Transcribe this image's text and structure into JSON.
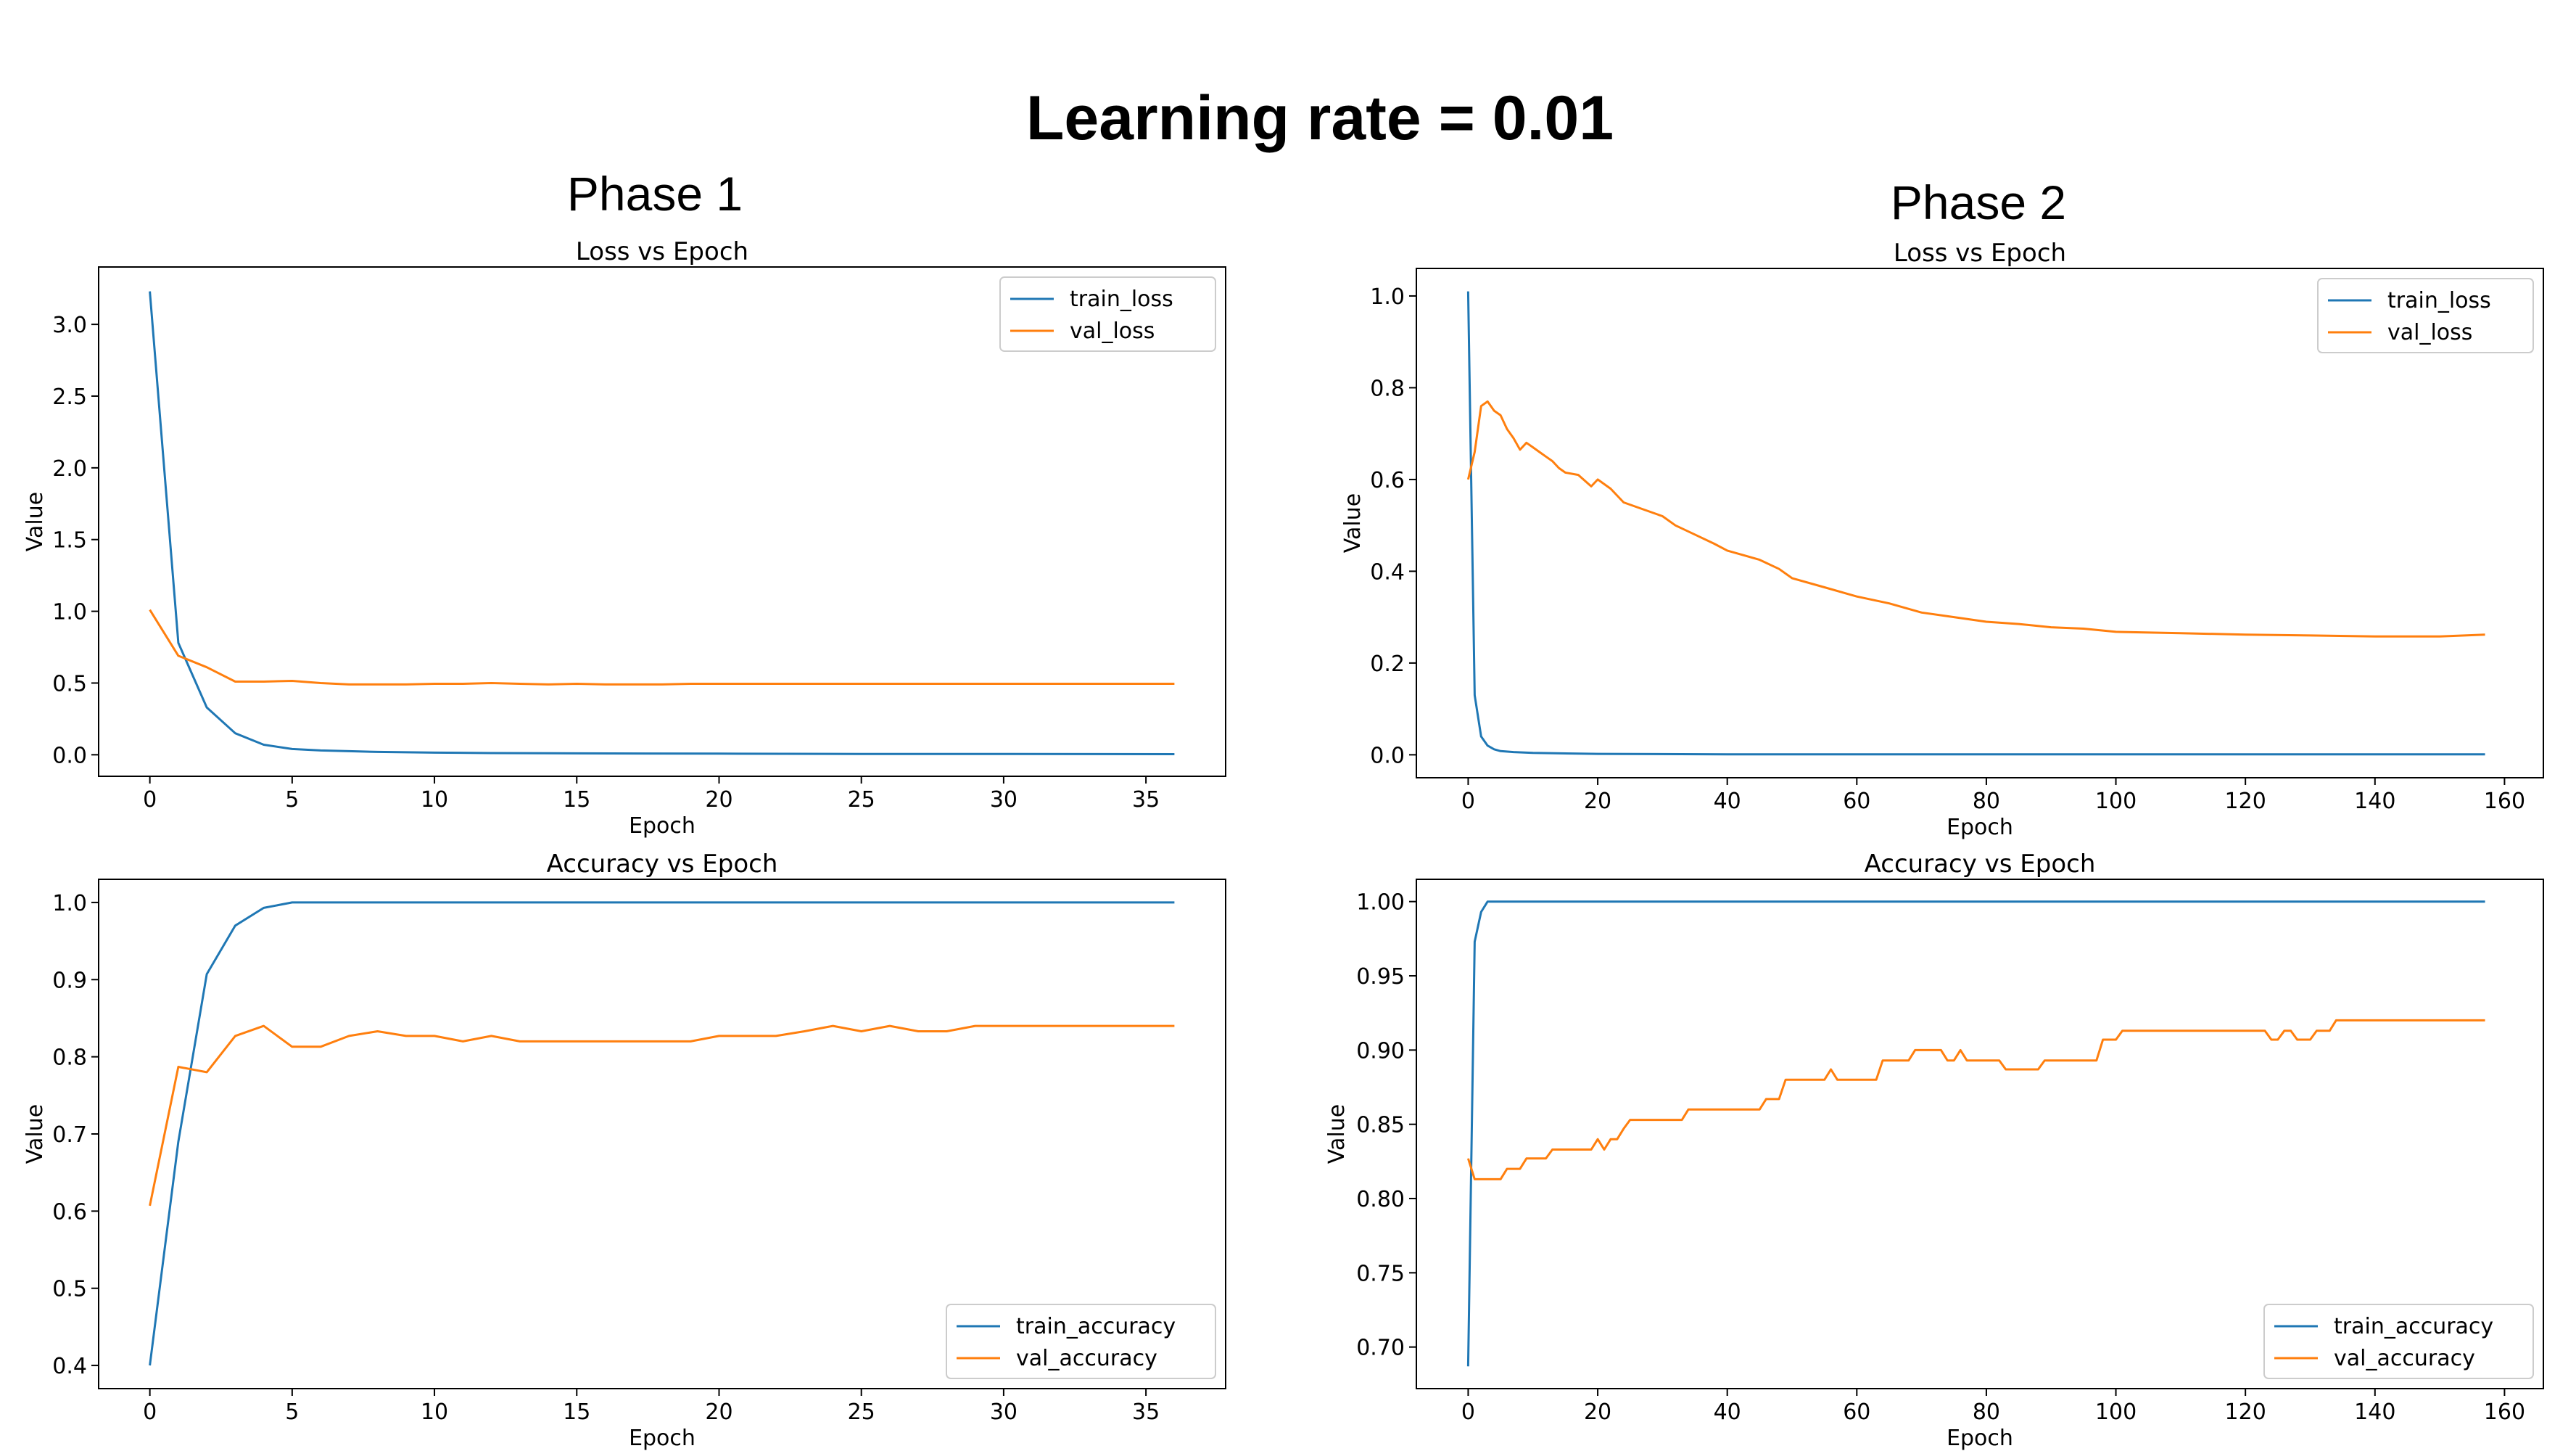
{
  "title": "Learning rate = 0.01",
  "phases": [
    {
      "label": "Phase 1"
    },
    {
      "label": "Phase 2"
    }
  ],
  "colors": {
    "train": "#1f77b4",
    "val": "#ff7f0e"
  },
  "chart_data": [
    {
      "type": "line",
      "panel": "Phase 1",
      "title": "Loss vs Epoch",
      "xlabel": "Epoch",
      "ylabel": "Value",
      "xlim": [
        -1.8,
        37.8
      ],
      "ylim": [
        -0.15,
        3.4
      ],
      "xticks": [
        0,
        5,
        10,
        15,
        20,
        25,
        30,
        35
      ],
      "yticks": [
        0.0,
        0.5,
        1.0,
        1.5,
        2.0,
        2.5,
        3.0
      ],
      "ytick_decimals": 1,
      "legend_loc": "upper right",
      "series": [
        {
          "name": "train_loss",
          "color": "#1f77b4",
          "points": [
            [
              0,
              3.23
            ],
            [
              1,
              0.78
            ],
            [
              2,
              0.33
            ],
            [
              3,
              0.15
            ],
            [
              4,
              0.07
            ],
            [
              5,
              0.04
            ],
            [
              6,
              0.03
            ],
            [
              7,
              0.025
            ],
            [
              8,
              0.02
            ],
            [
              10,
              0.015
            ],
            [
              12,
              0.012
            ],
            [
              15,
              0.01
            ],
            [
              20,
              0.008
            ],
            [
              25,
              0.006
            ],
            [
              30,
              0.005
            ],
            [
              36,
              0.004
            ]
          ]
        },
        {
          "name": "val_loss",
          "color": "#ff7f0e",
          "points": [
            [
              0,
              1.01
            ],
            [
              1,
              0.69
            ],
            [
              2,
              0.61
            ],
            [
              3,
              0.51
            ],
            [
              4,
              0.51
            ],
            [
              5,
              0.515
            ],
            [
              6,
              0.5
            ],
            [
              7,
              0.49
            ],
            [
              8,
              0.49
            ],
            [
              9,
              0.49
            ],
            [
              10,
              0.495
            ],
            [
              11,
              0.495
            ],
            [
              12,
              0.5
            ],
            [
              13,
              0.495
            ],
            [
              14,
              0.49
            ],
            [
              15,
              0.495
            ],
            [
              16,
              0.49
            ],
            [
              17,
              0.49
            ],
            [
              18,
              0.49
            ],
            [
              19,
              0.495
            ],
            [
              20,
              0.495
            ],
            [
              21,
              0.495
            ],
            [
              22,
              0.495
            ],
            [
              23,
              0.495
            ],
            [
              24,
              0.495
            ],
            [
              25,
              0.495
            ],
            [
              26,
              0.495
            ],
            [
              27,
              0.495
            ],
            [
              28,
              0.495
            ],
            [
              29,
              0.495
            ],
            [
              30,
              0.495
            ],
            [
              31,
              0.495
            ],
            [
              32,
              0.495
            ],
            [
              33,
              0.495
            ],
            [
              34,
              0.495
            ],
            [
              35,
              0.495
            ],
            [
              36,
              0.495
            ]
          ]
        }
      ]
    },
    {
      "type": "line",
      "panel": "Phase 1",
      "title": "Accuracy vs Epoch",
      "xlabel": "Epoch",
      "ylabel": "Value",
      "xlim": [
        -1.8,
        37.8
      ],
      "ylim": [
        0.37,
        1.03
      ],
      "xticks": [
        0,
        5,
        10,
        15,
        20,
        25,
        30,
        35
      ],
      "yticks": [
        0.4,
        0.5,
        0.6,
        0.7,
        0.8,
        0.9,
        1.0
      ],
      "ytick_decimals": 1,
      "legend_loc": "lower right",
      "series": [
        {
          "name": "train_accuracy",
          "color": "#1f77b4",
          "points": [
            [
              0,
              0.4
            ],
            [
              1,
              0.69
            ],
            [
              2,
              0.907
            ],
            [
              3,
              0.97
            ],
            [
              4,
              0.993
            ],
            [
              5,
              1.0
            ],
            [
              10,
              1.0
            ],
            [
              15,
              1.0
            ],
            [
              20,
              1.0
            ],
            [
              25,
              1.0
            ],
            [
              30,
              1.0
            ],
            [
              36,
              1.0
            ]
          ]
        },
        {
          "name": "val_accuracy",
          "color": "#ff7f0e",
          "points": [
            [
              0,
              0.607
            ],
            [
              1,
              0.787
            ],
            [
              2,
              0.78
            ],
            [
              3,
              0.827
            ],
            [
              4,
              0.84
            ],
            [
              5,
              0.813
            ],
            [
              6,
              0.813
            ],
            [
              7,
              0.827
            ],
            [
              8,
              0.833
            ],
            [
              9,
              0.827
            ],
            [
              10,
              0.827
            ],
            [
              11,
              0.82
            ],
            [
              12,
              0.827
            ],
            [
              13,
              0.82
            ],
            [
              14,
              0.82
            ],
            [
              15,
              0.82
            ],
            [
              16,
              0.82
            ],
            [
              17,
              0.82
            ],
            [
              18,
              0.82
            ],
            [
              19,
              0.82
            ],
            [
              20,
              0.827
            ],
            [
              21,
              0.827
            ],
            [
              22,
              0.827
            ],
            [
              23,
              0.833
            ],
            [
              24,
              0.84
            ],
            [
              25,
              0.833
            ],
            [
              26,
              0.84
            ],
            [
              27,
              0.833
            ],
            [
              28,
              0.833
            ],
            [
              29,
              0.84
            ],
            [
              30,
              0.84
            ],
            [
              31,
              0.84
            ],
            [
              32,
              0.84
            ],
            [
              33,
              0.84
            ],
            [
              34,
              0.84
            ],
            [
              35,
              0.84
            ],
            [
              36,
              0.84
            ]
          ]
        }
      ]
    },
    {
      "type": "line",
      "panel": "Phase 2",
      "title": "Loss vs Epoch",
      "xlabel": "Epoch",
      "ylabel": "Value",
      "xlim": [
        -8,
        166
      ],
      "ylim": [
        -0.05,
        1.06
      ],
      "xticks": [
        0,
        20,
        40,
        60,
        80,
        100,
        120,
        140,
        160
      ],
      "yticks": [
        0.0,
        0.2,
        0.4,
        0.6,
        0.8,
        1.0
      ],
      "ytick_decimals": 1,
      "legend_loc": "upper right",
      "series": [
        {
          "name": "train_loss",
          "color": "#1f77b4",
          "points": [
            [
              0,
              1.01
            ],
            [
              1,
              0.13
            ],
            [
              2,
              0.04
            ],
            [
              3,
              0.02
            ],
            [
              4,
              0.012
            ],
            [
              5,
              0.008
            ],
            [
              7,
              0.006
            ],
            [
              10,
              0.004
            ],
            [
              20,
              0.002
            ],
            [
              40,
              0.001
            ],
            [
              80,
              0.001
            ],
            [
              157,
              0.001
            ]
          ]
        },
        {
          "name": "val_loss",
          "color": "#ff7f0e",
          "points": [
            [
              0,
              0.6
            ],
            [
              1,
              0.66
            ],
            [
              2,
              0.76
            ],
            [
              3,
              0.77
            ],
            [
              4,
              0.75
            ],
            [
              5,
              0.74
            ],
            [
              6,
              0.71
            ],
            [
              7,
              0.69
            ],
            [
              8,
              0.665
            ],
            [
              9,
              0.68
            ],
            [
              10,
              0.67
            ],
            [
              11,
              0.66
            ],
            [
              12,
              0.65
            ],
            [
              13,
              0.64
            ],
            [
              14,
              0.625
            ],
            [
              15,
              0.615
            ],
            [
              17,
              0.61
            ],
            [
              19,
              0.585
            ],
            [
              20,
              0.6
            ],
            [
              22,
              0.58
            ],
            [
              24,
              0.55
            ],
            [
              27,
              0.535
            ],
            [
              30,
              0.52
            ],
            [
              32,
              0.5
            ],
            [
              35,
              0.48
            ],
            [
              38,
              0.46
            ],
            [
              40,
              0.445
            ],
            [
              45,
              0.425
            ],
            [
              48,
              0.405
            ],
            [
              50,
              0.385
            ],
            [
              55,
              0.365
            ],
            [
              60,
              0.345
            ],
            [
              65,
              0.33
            ],
            [
              70,
              0.31
            ],
            [
              75,
              0.3
            ],
            [
              80,
              0.29
            ],
            [
              85,
              0.285
            ],
            [
              90,
              0.278
            ],
            [
              95,
              0.275
            ],
            [
              100,
              0.268
            ],
            [
              110,
              0.265
            ],
            [
              120,
              0.262
            ],
            [
              130,
              0.26
            ],
            [
              140,
              0.258
            ],
            [
              150,
              0.258
            ],
            [
              157,
              0.262
            ]
          ]
        }
      ]
    },
    {
      "type": "line",
      "panel": "Phase 2",
      "title": "Accuracy vs Epoch",
      "xlabel": "Epoch",
      "ylabel": "Value",
      "xlim": [
        -8,
        166
      ],
      "ylim": [
        0.672,
        1.015
      ],
      "xticks": [
        0,
        20,
        40,
        60,
        80,
        100,
        120,
        140,
        160
      ],
      "yticks": [
        0.7,
        0.75,
        0.8,
        0.85,
        0.9,
        0.95,
        1.0
      ],
      "ytick_decimals": 2,
      "legend_loc": "lower right",
      "series": [
        {
          "name": "train_accuracy",
          "color": "#1f77b4",
          "points": [
            [
              0,
              0.687
            ],
            [
              1,
              0.973
            ],
            [
              2,
              0.993
            ],
            [
              3,
              1.0
            ],
            [
              10,
              1.0
            ],
            [
              50,
              1.0
            ],
            [
              100,
              1.0
            ],
            [
              157,
              1.0
            ]
          ]
        },
        {
          "name": "val_accuracy",
          "color": "#ff7f0e",
          "points": [
            [
              0,
              0.827
            ],
            [
              1,
              0.813
            ],
            [
              5,
              0.813
            ],
            [
              6,
              0.82
            ],
            [
              8,
              0.82
            ],
            [
              9,
              0.827
            ],
            [
              12,
              0.827
            ],
            [
              13,
              0.833
            ],
            [
              19,
              0.833
            ],
            [
              20,
              0.84
            ],
            [
              21,
              0.833
            ],
            [
              22,
              0.84
            ],
            [
              23,
              0.84
            ],
            [
              24,
              0.847
            ],
            [
              25,
              0.853
            ],
            [
              33,
              0.853
            ],
            [
              34,
              0.86
            ],
            [
              45,
              0.86
            ],
            [
              46,
              0.867
            ],
            [
              48,
              0.867
            ],
            [
              49,
              0.88
            ],
            [
              55,
              0.88
            ],
            [
              56,
              0.887
            ],
            [
              57,
              0.88
            ],
            [
              63,
              0.88
            ],
            [
              64,
              0.893
            ],
            [
              68,
              0.893
            ],
            [
              69,
              0.9
            ],
            [
              73,
              0.9
            ],
            [
              74,
              0.893
            ],
            [
              75,
              0.893
            ],
            [
              76,
              0.9
            ],
            [
              77,
              0.893
            ],
            [
              82,
              0.893
            ],
            [
              83,
              0.887
            ],
            [
              88,
              0.887
            ],
            [
              89,
              0.893
            ],
            [
              97,
              0.893
            ],
            [
              98,
              0.907
            ],
            [
              100,
              0.907
            ],
            [
              101,
              0.913
            ],
            [
              123,
              0.913
            ],
            [
              124,
              0.907
            ],
            [
              125,
              0.907
            ],
            [
              126,
              0.913
            ],
            [
              127,
              0.913
            ],
            [
              128,
              0.907
            ],
            [
              130,
              0.907
            ],
            [
              131,
              0.913
            ],
            [
              133,
              0.913
            ],
            [
              134,
              0.92
            ],
            [
              157,
              0.92
            ]
          ]
        }
      ]
    }
  ]
}
